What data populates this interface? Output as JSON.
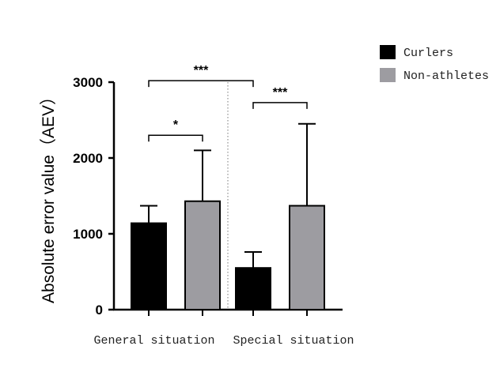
{
  "chart_data": {
    "type": "bar",
    "ylabel": "Absolute error value（AEV）",
    "xlabel": "",
    "ylim": [
      0,
      3000
    ],
    "yticks": [
      0,
      1000,
      2000,
      3000
    ],
    "ytick_labels": [
      "0",
      "1000",
      "2000",
      "3000"
    ],
    "categories": [
      "General situation",
      "Special situation"
    ],
    "series": [
      {
        "name": "Curlers",
        "color": "#000000",
        "values": [
          1140,
          550
        ],
        "errors": [
          230,
          210
        ]
      },
      {
        "name": "Non-athletes",
        "color": "#9d9ca1",
        "values": [
          1430,
          1370
        ],
        "errors": [
          670,
          1080
        ]
      }
    ],
    "significance": [
      {
        "label": "*",
        "from": "General situation / Curlers",
        "to": "General situation / Non-athletes",
        "y": 2300
      },
      {
        "label": "***",
        "from": "Special situation / Curlers",
        "to": "Special situation / Non-athletes",
        "y": 2730
      },
      {
        "label": "***",
        "from": "General situation / Curlers",
        "to": "Special situation / Curlers",
        "y": 3020
      }
    ],
    "legend_position": "top-right",
    "divider": "dotted vertical line between groups"
  }
}
